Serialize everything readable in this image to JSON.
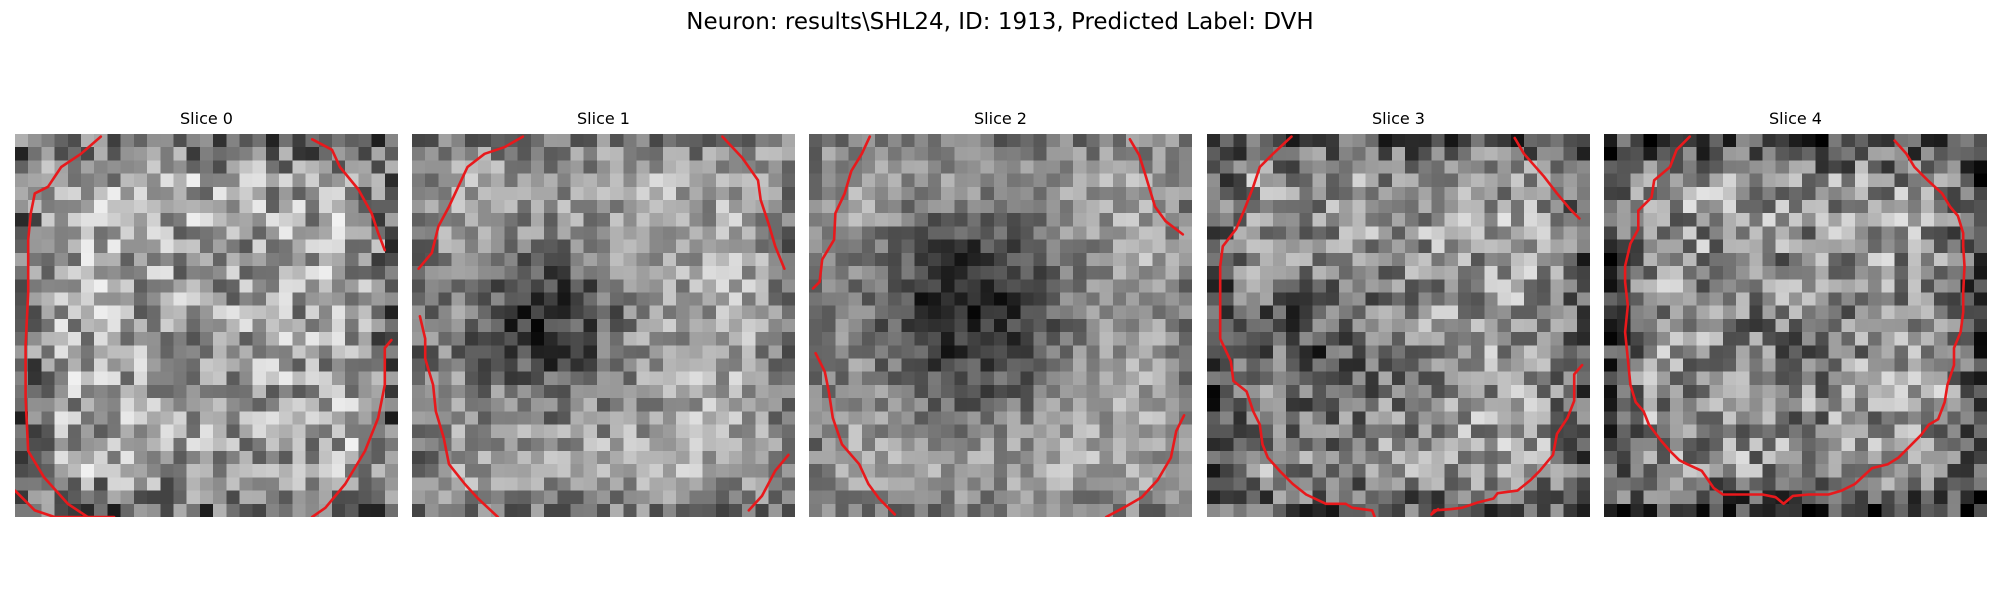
{
  "figure": {
    "suptitle": "Neuron: results\\SHL24, ID: 1913, Predicted Label: DVH"
  },
  "slices": [
    {
      "title": "Slice 0"
    },
    {
      "title": "Slice 1"
    },
    {
      "title": "Slice 2"
    },
    {
      "title": "Slice 3"
    },
    {
      "title": "Slice 4"
    }
  ],
  "colors": {
    "contour": "#e8191c",
    "colormap": "gray",
    "background": "#ffffff"
  }
}
